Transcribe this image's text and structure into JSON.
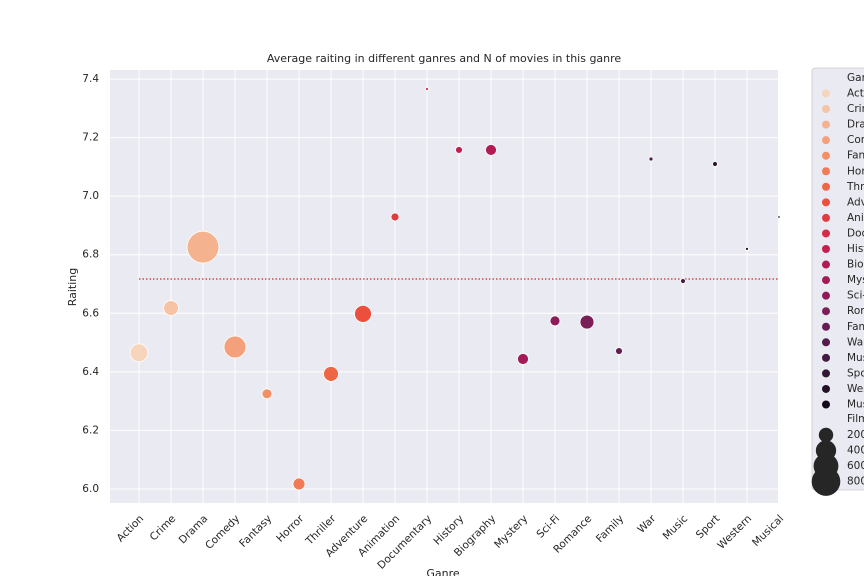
{
  "chart_data": {
    "type": "scatter",
    "title": "Average raiting in different ganres and N of movies in this ganre",
    "x_label": "Ganre",
    "y_label": "Raiting",
    "categories": [
      "Action",
      "Crime",
      "Drama",
      "Comedy",
      "Fantasy",
      "Horror",
      "Thriller",
      "Adventure",
      "Animation",
      "Documentary",
      "History",
      "Biography",
      "Mystery",
      "Sci-Fi",
      "Romance",
      "Family",
      "War",
      "Music",
      "Sport",
      "Western",
      "Musical"
    ],
    "values": [
      6.465,
      6.618,
      6.826,
      6.485,
      6.325,
      6.017,
      6.393,
      6.598,
      6.929,
      7.366,
      7.158,
      7.158,
      6.444,
      6.574,
      6.57,
      6.471,
      7.127,
      6.71,
      7.11,
      6.82,
      6.929
    ],
    "sizes": [
      310,
      215,
      985,
      470,
      94,
      137,
      215,
      280,
      59,
      5,
      44,
      115,
      115,
      94,
      188,
      44,
      12,
      20,
      20,
      5,
      2
    ],
    "colors": [
      "#f7d4bc",
      "#f6c3a5",
      "#f5b28e",
      "#f4a07a",
      "#f28f67",
      "#f07b55",
      "#ef6645",
      "#ec4f3e",
      "#e33a41",
      "#d72a47",
      "#c71f4d",
      "#b41a53",
      "#a21a56",
      "#8e1b58",
      "#7b1d57",
      "#661d53",
      "#531c4c",
      "#431a42",
      "#321635",
      "#231127",
      "#14091a"
    ],
    "mean_line": 6.717,
    "mean_line_color": "#d62728",
    "ylim": [
      5.952,
      7.431
    ],
    "yticks": [
      {
        "value": 6,
        "label": "6.0"
      },
      6.2,
      6.4,
      6.6,
      6.8,
      {
        "value": 7,
        "label": "7.0"
      },
      7.2,
      7.4
    ],
    "grid": true,
    "legend_title": "Ganre",
    "size_legend_title": "Films",
    "size_legend": [
      200,
      400,
      600,
      800
    ],
    "size_legend_color": "#262626"
  }
}
